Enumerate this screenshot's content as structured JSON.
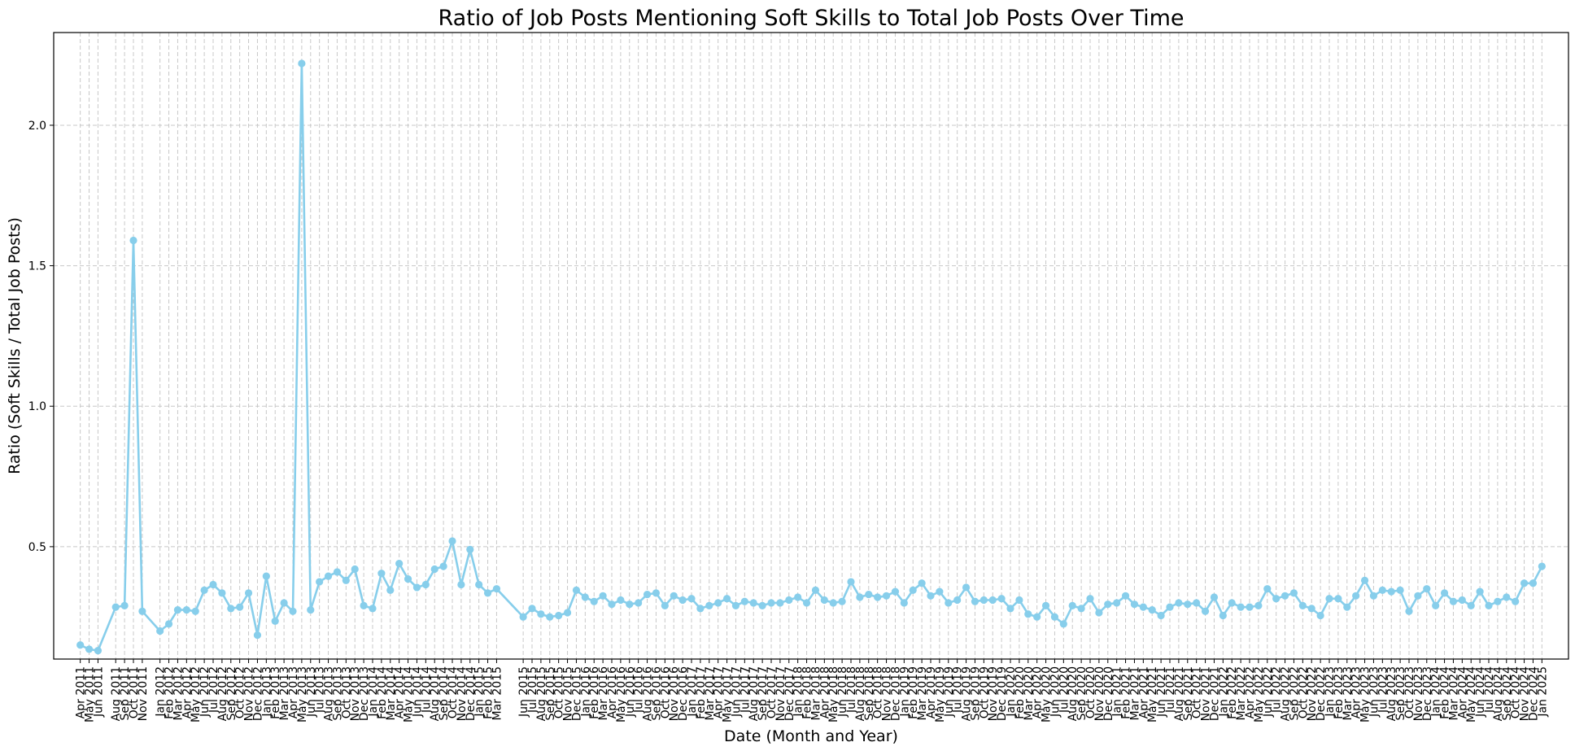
{
  "chart_data": {
    "type": "line",
    "title": "Ratio of Job Posts Mentioning Soft Skills to Total Job Posts Over Time",
    "xlabel": "Date (Month and Year)",
    "ylabel": "Ratio (Soft Skills / Total Job Posts)",
    "ylim": [
      0.1,
      2.33
    ],
    "yticks": [
      0.5,
      1.0,
      1.5,
      2.0
    ],
    "ytick_labels": [
      "0.5",
      "1.0",
      "1.5",
      "2.0"
    ],
    "x_range": [
      "2011-01",
      "2025-04"
    ],
    "grid": true,
    "legend": "none",
    "line_color": "#87CEEB",
    "grid_color": "#c8c8c8",
    "marker": "circle",
    "x": [
      "Apr 2011",
      "May 2011",
      "Jun 2011",
      "Aug 2011",
      "Sep 2011",
      "Oct 2011",
      "Nov 2011",
      "Jan 2012",
      "Feb 2012",
      "Mar 2012",
      "Apr 2012",
      "May 2012",
      "Jun 2012",
      "Jul 2012",
      "Aug 2012",
      "Sep 2012",
      "Oct 2012",
      "Nov 2012",
      "Dec 2012",
      "Jan 2013",
      "Feb 2013",
      "Mar 2013",
      "Apr 2013",
      "May 2013",
      "Jun 2013",
      "Jul 2013",
      "Aug 2013",
      "Sep 2013",
      "Oct 2013",
      "Nov 2013",
      "Dec 2013",
      "Jan 2014",
      "Feb 2014",
      "Mar 2014",
      "Apr 2014",
      "May 2014",
      "Jun 2014",
      "Jul 2014",
      "Aug 2014",
      "Sep 2014",
      "Oct 2014",
      "Nov 2014",
      "Dec 2014",
      "Jan 2015",
      "Feb 2015",
      "Mar 2015",
      "Jun 2015",
      "Jul 2015",
      "Aug 2015",
      "Sep 2015",
      "Oct 2015",
      "Nov 2015",
      "Dec 2015",
      "Jan 2016",
      "Feb 2016",
      "Mar 2016",
      "Apr 2016",
      "May 2016",
      "Jun 2016",
      "Jul 2016",
      "Aug 2016",
      "Sep 2016",
      "Oct 2016",
      "Nov 2016",
      "Dec 2016",
      "Jan 2017",
      "Feb 2017",
      "Mar 2017",
      "Apr 2017",
      "May 2017",
      "Jun 2017",
      "Jul 2017",
      "Aug 2017",
      "Sep 2017",
      "Oct 2017",
      "Nov 2017",
      "Dec 2017",
      "Jan 2018",
      "Feb 2018",
      "Mar 2018",
      "Apr 2018",
      "May 2018",
      "Jun 2018",
      "Jul 2018",
      "Aug 2018",
      "Sep 2018",
      "Oct 2018",
      "Nov 2018",
      "Dec 2018",
      "Jan 2019",
      "Feb 2019",
      "Mar 2019",
      "Apr 2019",
      "May 2019",
      "Jun 2019",
      "Jul 2019",
      "Aug 2019",
      "Sep 2019",
      "Oct 2019",
      "Nov 2019",
      "Dec 2019",
      "Jan 2020",
      "Feb 2020",
      "Mar 2020",
      "Apr 2020",
      "May 2020",
      "Jun 2020",
      "Jul 2020",
      "Aug 2020",
      "Sep 2020",
      "Oct 2020",
      "Nov 2020",
      "Dec 2020",
      "Jan 2021",
      "Feb 2021",
      "Mar 2021",
      "Apr 2021",
      "May 2021",
      "Jun 2021",
      "Jul 2021",
      "Aug 2021",
      "Sep 2021",
      "Oct 2021",
      "Nov 2021",
      "Dec 2021",
      "Jan 2022",
      "Feb 2022",
      "Mar 2022",
      "Apr 2022",
      "May 2022",
      "Jun 2022",
      "Jul 2022",
      "Aug 2022",
      "Sep 2022",
      "Oct 2022",
      "Nov 2022",
      "Dec 2022",
      "Jan 2023",
      "Feb 2023",
      "Mar 2023",
      "Apr 2023",
      "May 2023",
      "Jun 2023",
      "Jul 2023",
      "Aug 2023",
      "Sep 2023",
      "Oct 2023",
      "Nov 2023",
      "Dec 2023",
      "Jan 2024",
      "Feb 2024",
      "Mar 2024",
      "Apr 2024",
      "May 2024",
      "Jun 2024",
      "Jul 2024",
      "Aug 2024",
      "Sep 2024",
      "Oct 2024",
      "Nov 2024",
      "Dec 2024",
      "Jan 2025"
    ],
    "values": [
      0.15,
      0.135,
      0.13,
      0.285,
      0.29,
      1.59,
      0.27,
      0.2,
      0.225,
      0.275,
      0.275,
      0.27,
      0.345,
      0.365,
      0.335,
      0.28,
      0.285,
      0.335,
      0.185,
      0.395,
      0.235,
      0.3,
      0.27,
      2.22,
      0.275,
      0.375,
      0.395,
      0.41,
      0.38,
      0.42,
      0.29,
      0.28,
      0.405,
      0.345,
      0.44,
      0.385,
      0.355,
      0.365,
      0.42,
      0.43,
      0.52,
      0.365,
      0.49,
      0.365,
      0.335,
      0.35,
      0.25,
      0.28,
      0.26,
      0.25,
      0.255,
      0.265,
      0.345,
      0.32,
      0.305,
      0.325,
      0.295,
      0.31,
      0.295,
      0.3,
      0.33,
      0.335,
      0.29,
      0.325,
      0.31,
      0.315,
      0.28,
      0.29,
      0.3,
      0.315,
      0.29,
      0.305,
      0.3,
      0.29,
      0.3,
      0.3,
      0.31,
      0.32,
      0.3,
      0.345,
      0.31,
      0.3,
      0.305,
      0.375,
      0.32,
      0.33,
      0.32,
      0.325,
      0.34,
      0.3,
      0.345,
      0.37,
      0.325,
      0.34,
      0.3,
      0.31,
      0.355,
      0.305,
      0.31,
      0.31,
      0.315,
      0.28,
      0.31,
      0.26,
      0.25,
      0.29,
      0.25,
      0.225,
      0.29,
      0.28,
      0.315,
      0.265,
      0.295,
      0.3,
      0.325,
      0.295,
      0.285,
      0.275,
      0.255,
      0.285,
      0.3,
      0.295,
      0.3,
      0.27,
      0.32,
      0.255,
      0.3,
      0.285,
      0.285,
      0.29,
      0.35,
      0.315,
      0.325,
      0.335,
      0.29,
      0.28,
      0.255,
      0.315,
      0.315,
      0.285,
      0.325,
      0.38,
      0.325,
      0.345,
      0.34,
      0.345,
      0.27,
      0.325,
      0.35,
      0.29,
      0.335,
      0.305,
      0.31,
      0.29,
      0.34,
      0.29,
      0.305,
      0.32,
      0.305,
      0.37,
      0.37,
      0.43
    ]
  }
}
